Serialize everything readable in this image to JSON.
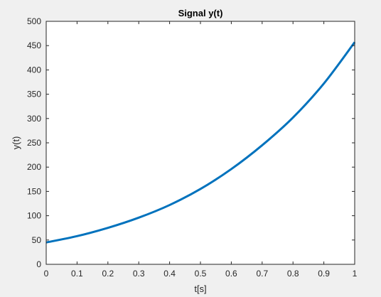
{
  "chart_data": {
    "type": "line",
    "title": "Signal y(t)",
    "xlabel": "t[s]",
    "ylabel": "y(t)",
    "xlim": [
      0,
      1
    ],
    "ylim": [
      0,
      500
    ],
    "xticks": [
      0,
      0.1,
      0.2,
      0.3,
      0.4,
      0.5,
      0.6,
      0.7,
      0.8,
      0.9,
      1
    ],
    "xtick_labels": [
      "0",
      "0.1",
      "0.2",
      "0.3",
      "0.4",
      "0.5",
      "0.6",
      "0.7",
      "0.8",
      "0.9",
      "1"
    ],
    "yticks": [
      0,
      50,
      100,
      150,
      200,
      250,
      300,
      350,
      400,
      450,
      500
    ],
    "ytick_labels": [
      "0",
      "50",
      "100",
      "150",
      "200",
      "250",
      "300",
      "350",
      "400",
      "450",
      "500"
    ],
    "grid": false,
    "box": true,
    "series": [
      {
        "color": "#0072BD",
        "x": [
          0,
          0.1,
          0.2,
          0.3,
          0.4,
          0.5,
          0.6,
          0.7,
          0.8,
          0.9,
          1.0
        ],
        "y": [
          45,
          58,
          75,
          96,
          122,
          155,
          196,
          245,
          302,
          372,
          457
        ]
      }
    ]
  }
}
